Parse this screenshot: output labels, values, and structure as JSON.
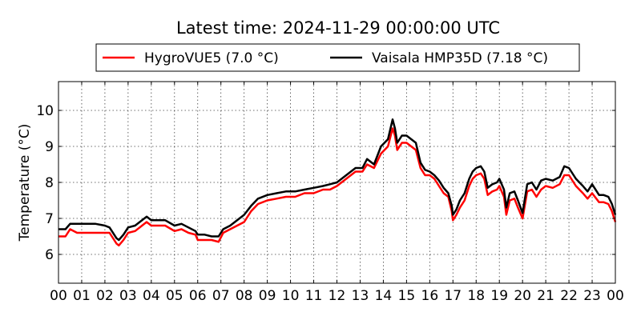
{
  "chart_data": {
    "type": "line",
    "title": "Latest time: 2024-11-29 00:00:00 UTC",
    "xlabel": "",
    "ylabel": "Temperature (°C)",
    "xlim": [
      0,
      24
    ],
    "ylim": [
      5.2,
      10.8
    ],
    "x_tick_labels": [
      "00",
      "01",
      "02",
      "03",
      "04",
      "05",
      "06",
      "07",
      "08",
      "09",
      "10",
      "11",
      "12",
      "13",
      "14",
      "15",
      "16",
      "17",
      "18",
      "19",
      "20",
      "21",
      "22",
      "23",
      "00"
    ],
    "y_ticks": [
      6,
      7,
      8,
      9,
      10
    ],
    "grid": true,
    "legend_placement": "top-center",
    "series": [
      {
        "name": "HygroVUE5 (7.0 °C)",
        "color": "#ff0000",
        "points": [
          [
            0,
            6.5
          ],
          [
            0.3,
            6.5
          ],
          [
            0.5,
            6.7
          ],
          [
            0.8,
            6.6
          ],
          [
            1.2,
            6.6
          ],
          [
            1.6,
            6.6
          ],
          [
            2.0,
            6.6
          ],
          [
            2.2,
            6.6
          ],
          [
            2.5,
            6.3
          ],
          [
            2.6,
            6.25
          ],
          [
            2.8,
            6.4
          ],
          [
            3.0,
            6.6
          ],
          [
            3.3,
            6.65
          ],
          [
            3.6,
            6.8
          ],
          [
            3.8,
            6.9
          ],
          [
            4.0,
            6.8
          ],
          [
            4.3,
            6.8
          ],
          [
            4.6,
            6.8
          ],
          [
            5.0,
            6.65
          ],
          [
            5.3,
            6.7
          ],
          [
            5.6,
            6.6
          ],
          [
            5.9,
            6.55
          ],
          [
            6.0,
            6.4
          ],
          [
            6.3,
            6.4
          ],
          [
            6.6,
            6.4
          ],
          [
            6.9,
            6.35
          ],
          [
            7.1,
            6.6
          ],
          [
            7.4,
            6.7
          ],
          [
            7.7,
            6.8
          ],
          [
            8.0,
            6.9
          ],
          [
            8.3,
            7.2
          ],
          [
            8.6,
            7.4
          ],
          [
            9.0,
            7.5
          ],
          [
            9.4,
            7.55
          ],
          [
            9.8,
            7.6
          ],
          [
            10.2,
            7.6
          ],
          [
            10.6,
            7.7
          ],
          [
            11.0,
            7.7
          ],
          [
            11.4,
            7.8
          ],
          [
            11.7,
            7.8
          ],
          [
            12.0,
            7.9
          ],
          [
            12.4,
            8.1
          ],
          [
            12.8,
            8.3
          ],
          [
            13.1,
            8.3
          ],
          [
            13.3,
            8.5
          ],
          [
            13.6,
            8.4
          ],
          [
            13.9,
            8.8
          ],
          [
            14.2,
            9.0
          ],
          [
            14.4,
            9.5
          ],
          [
            14.5,
            9.3
          ],
          [
            14.6,
            8.9
          ],
          [
            14.8,
            9.1
          ],
          [
            15.0,
            9.1
          ],
          [
            15.2,
            9.0
          ],
          [
            15.4,
            8.9
          ],
          [
            15.6,
            8.4
          ],
          [
            15.8,
            8.2
          ],
          [
            16.0,
            8.2
          ],
          [
            16.2,
            8.1
          ],
          [
            16.4,
            7.9
          ],
          [
            16.6,
            7.7
          ],
          [
            16.8,
            7.6
          ],
          [
            16.95,
            7.2
          ],
          [
            17.0,
            6.95
          ],
          [
            17.15,
            7.1
          ],
          [
            17.3,
            7.3
          ],
          [
            17.5,
            7.5
          ],
          [
            17.7,
            7.9
          ],
          [
            17.85,
            8.1
          ],
          [
            18.0,
            8.2
          ],
          [
            18.2,
            8.25
          ],
          [
            18.35,
            8.1
          ],
          [
            18.5,
            7.65
          ],
          [
            18.7,
            7.75
          ],
          [
            18.9,
            7.8
          ],
          [
            19.0,
            7.9
          ],
          [
            19.2,
            7.6
          ],
          [
            19.3,
            7.1
          ],
          [
            19.45,
            7.5
          ],
          [
            19.65,
            7.55
          ],
          [
            19.8,
            7.3
          ],
          [
            20.0,
            7.0
          ],
          [
            20.2,
            7.75
          ],
          [
            20.4,
            7.8
          ],
          [
            20.6,
            7.6
          ],
          [
            20.8,
            7.8
          ],
          [
            21.0,
            7.9
          ],
          [
            21.3,
            7.85
          ],
          [
            21.6,
            7.95
          ],
          [
            21.8,
            8.2
          ],
          [
            22.0,
            8.2
          ],
          [
            22.3,
            7.9
          ],
          [
            22.6,
            7.7
          ],
          [
            22.8,
            7.55
          ],
          [
            23.0,
            7.7
          ],
          [
            23.3,
            7.45
          ],
          [
            23.5,
            7.45
          ],
          [
            23.7,
            7.4
          ],
          [
            23.85,
            7.2
          ],
          [
            24.0,
            6.9
          ]
        ]
      },
      {
        "name": "Vaisala HMP35D (7.18 °C)",
        "color": "#000000",
        "points": [
          [
            0,
            6.7
          ],
          [
            0.3,
            6.7
          ],
          [
            0.5,
            6.85
          ],
          [
            0.8,
            6.85
          ],
          [
            1.2,
            6.85
          ],
          [
            1.6,
            6.85
          ],
          [
            2.0,
            6.8
          ],
          [
            2.2,
            6.75
          ],
          [
            2.5,
            6.45
          ],
          [
            2.6,
            6.4
          ],
          [
            2.8,
            6.55
          ],
          [
            3.0,
            6.75
          ],
          [
            3.3,
            6.8
          ],
          [
            3.6,
            6.95
          ],
          [
            3.8,
            7.05
          ],
          [
            4.0,
            6.95
          ],
          [
            4.3,
            6.95
          ],
          [
            4.6,
            6.95
          ],
          [
            5.0,
            6.8
          ],
          [
            5.3,
            6.85
          ],
          [
            5.6,
            6.75
          ],
          [
            5.9,
            6.65
          ],
          [
            6.0,
            6.55
          ],
          [
            6.3,
            6.55
          ],
          [
            6.6,
            6.5
          ],
          [
            6.9,
            6.5
          ],
          [
            7.1,
            6.7
          ],
          [
            7.4,
            6.8
          ],
          [
            7.7,
            6.95
          ],
          [
            8.0,
            7.1
          ],
          [
            8.3,
            7.35
          ],
          [
            8.6,
            7.55
          ],
          [
            9.0,
            7.65
          ],
          [
            9.4,
            7.7
          ],
          [
            9.8,
            7.75
          ],
          [
            10.2,
            7.75
          ],
          [
            10.6,
            7.8
          ],
          [
            11.0,
            7.85
          ],
          [
            11.4,
            7.9
          ],
          [
            11.7,
            7.95
          ],
          [
            12.0,
            8.0
          ],
          [
            12.4,
            8.2
          ],
          [
            12.8,
            8.4
          ],
          [
            13.1,
            8.4
          ],
          [
            13.3,
            8.65
          ],
          [
            13.6,
            8.5
          ],
          [
            13.9,
            9.0
          ],
          [
            14.2,
            9.2
          ],
          [
            14.4,
            9.75
          ],
          [
            14.5,
            9.5
          ],
          [
            14.6,
            9.1
          ],
          [
            14.8,
            9.3
          ],
          [
            15.0,
            9.3
          ],
          [
            15.2,
            9.2
          ],
          [
            15.4,
            9.1
          ],
          [
            15.6,
            8.55
          ],
          [
            15.8,
            8.35
          ],
          [
            16.0,
            8.3
          ],
          [
            16.2,
            8.2
          ],
          [
            16.4,
            8.05
          ],
          [
            16.6,
            7.85
          ],
          [
            16.8,
            7.7
          ],
          [
            16.95,
            7.35
          ],
          [
            17.0,
            7.1
          ],
          [
            17.15,
            7.25
          ],
          [
            17.3,
            7.5
          ],
          [
            17.5,
            7.7
          ],
          [
            17.7,
            8.1
          ],
          [
            17.85,
            8.3
          ],
          [
            18.0,
            8.4
          ],
          [
            18.2,
            8.45
          ],
          [
            18.35,
            8.3
          ],
          [
            18.5,
            7.85
          ],
          [
            18.7,
            7.95
          ],
          [
            18.9,
            8.0
          ],
          [
            19.0,
            8.1
          ],
          [
            19.2,
            7.8
          ],
          [
            19.3,
            7.3
          ],
          [
            19.45,
            7.7
          ],
          [
            19.65,
            7.75
          ],
          [
            19.8,
            7.5
          ],
          [
            20.0,
            7.15
          ],
          [
            20.2,
            7.95
          ],
          [
            20.4,
            8.0
          ],
          [
            20.6,
            7.8
          ],
          [
            20.8,
            8.05
          ],
          [
            21.0,
            8.1
          ],
          [
            21.3,
            8.05
          ],
          [
            21.6,
            8.15
          ],
          [
            21.8,
            8.45
          ],
          [
            22.0,
            8.4
          ],
          [
            22.3,
            8.1
          ],
          [
            22.6,
            7.9
          ],
          [
            22.8,
            7.75
          ],
          [
            23.0,
            7.95
          ],
          [
            23.3,
            7.65
          ],
          [
            23.5,
            7.65
          ],
          [
            23.7,
            7.6
          ],
          [
            23.85,
            7.4
          ],
          [
            24.0,
            7.1
          ]
        ]
      }
    ]
  }
}
